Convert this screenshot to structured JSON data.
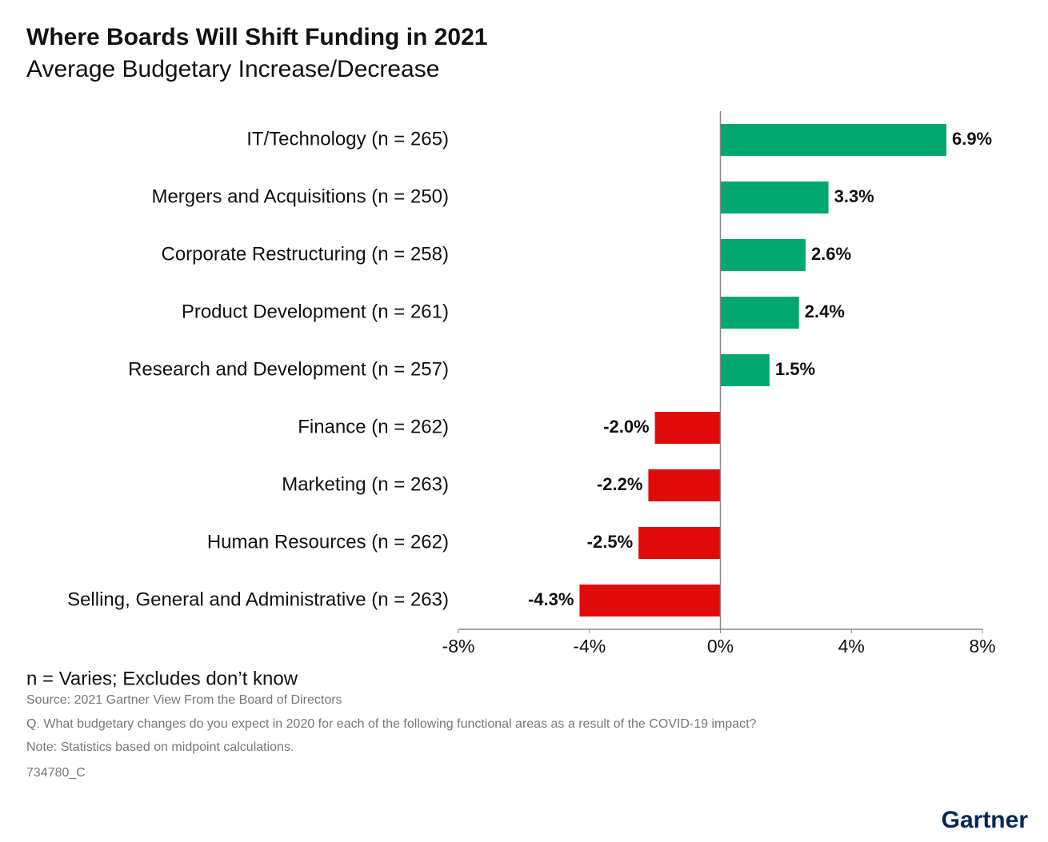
{
  "chart_data": {
    "type": "bar",
    "orientation": "horizontal",
    "title": "Where Boards Will Shift Funding in 2021",
    "subtitle": "Average Budgetary Increase/Decrease",
    "categories": [
      "IT/Technology (n = 265)",
      "Mergers and Acquisitions (n = 250)",
      "Corporate Restructuring (n = 258)",
      "Product Development (n = 261)",
      "Research and Development (n = 257)",
      "Finance (n = 262)",
      "Marketing (n = 263)",
      "Human Resources (n = 262)",
      "Selling, General and Administrative (n = 263)"
    ],
    "values": [
      6.9,
      3.3,
      2.6,
      2.4,
      1.5,
      -2.0,
      -2.2,
      -2.5,
      -4.3
    ],
    "value_labels": [
      "6.9%",
      "3.3%",
      "2.6%",
      "2.4%",
      "1.5%",
      "-2.0%",
      "-2.2%",
      "-2.5%",
      "-4.3%"
    ],
    "colors": [
      "#00a870",
      "#00a870",
      "#00a870",
      "#00a870",
      "#00a870",
      "#e00a0a",
      "#e00a0a",
      "#e00a0a",
      "#e00a0a"
    ],
    "xlim": [
      -8,
      8
    ],
    "xticks": [
      {
        "value": -8,
        "label": "-8%"
      },
      {
        "value": -4,
        "label": "-4%"
      },
      {
        "value": 0,
        "label": "0%"
      },
      {
        "value": 4,
        "label": "4%"
      },
      {
        "value": 8,
        "label": "8%"
      }
    ],
    "note": "n = Varies; Excludes don’t know",
    "footnotes": [
      "Source: 2021 Gartner View From the Board of Directors",
      "Q. What budgetary changes do you expect in 2020 for each of the following functional areas as a result of the COVID-19 impact?",
      "Note: Statistics based on midpoint calculations.",
      "734780_C"
    ],
    "brand": "Gartner"
  }
}
